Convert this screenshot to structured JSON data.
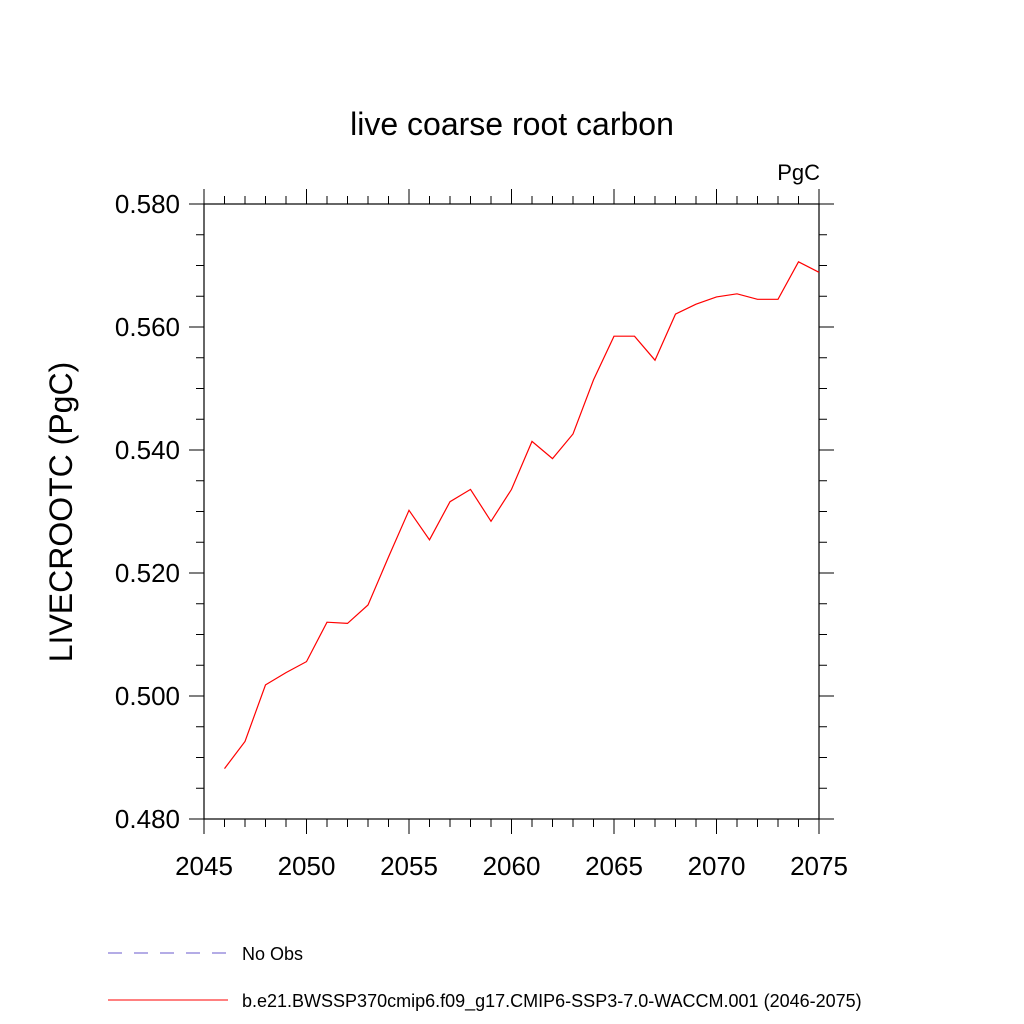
{
  "chart_data": {
    "type": "line",
    "title": "live coarse root carbon",
    "units_label": "PgC",
    "ylabel": "LIVECROOTC  (PgC)",
    "xlabel": "",
    "xlim": [
      2045,
      2075
    ],
    "ylim": [
      0.48,
      0.58
    ],
    "x_ticks": [
      2045,
      2050,
      2055,
      2060,
      2065,
      2070,
      2075
    ],
    "y_ticks": [
      "0.480",
      "0.500",
      "0.520",
      "0.540",
      "0.560",
      "0.580"
    ],
    "y_tick_values": [
      0.48,
      0.5,
      0.52,
      0.54,
      0.56,
      0.58
    ],
    "series": [
      {
        "name": "b.e21.BWSSP370cmip6.f09_g17.CMIP6-SSP3-7.0-WACCM.001 (2046-2075)",
        "color": "#ff0000",
        "x": [
          2046,
          2047,
          2048,
          2049,
          2050,
          2051,
          2052,
          2053,
          2054,
          2055,
          2056,
          2057,
          2058,
          2059,
          2060,
          2061,
          2062,
          2063,
          2064,
          2065,
          2066,
          2067,
          2068,
          2069,
          2070,
          2071,
          2072,
          2073,
          2074,
          2075
        ],
        "y": [
          0.4882,
          0.4926,
          0.5018,
          0.5038,
          0.5056,
          0.512,
          0.5118,
          0.5148,
          0.5226,
          0.5302,
          0.5254,
          0.5316,
          0.5336,
          0.5284,
          0.5336,
          0.5414,
          0.5386,
          0.5426,
          0.5514,
          0.5585,
          0.5585,
          0.5546,
          0.5621,
          0.5637,
          0.5649,
          0.5654,
          0.5645,
          0.5645,
          0.5706,
          0.5689
        ]
      }
    ],
    "legend": {
      "placement": "bottom",
      "entries": [
        {
          "label": "No Obs",
          "style": "dashed",
          "color": "#6a5acd"
        },
        {
          "label": "b.e21.BWSSP370cmip6.f09_g17.CMIP6-SSP3-7.0-WACCM.001 (2046-2075)",
          "style": "solid",
          "color": "#ff0000"
        }
      ]
    }
  }
}
